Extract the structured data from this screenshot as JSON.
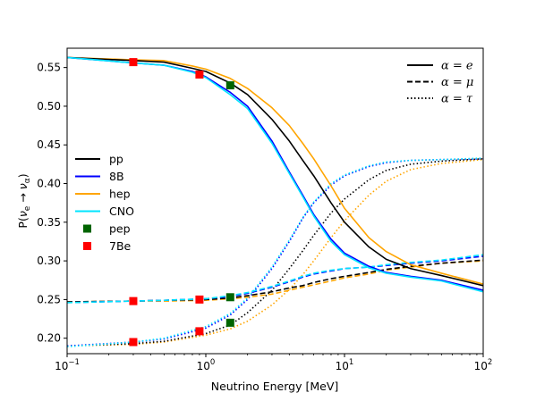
{
  "chart_data": {
    "type": "line",
    "xlabel": "Neutrino Energy [MeV]",
    "ylabel": "P(ν_e → ν_α)",
    "xscale": "log",
    "xlim": [
      0.1,
      100
    ],
    "ylim": [
      0.18,
      0.575
    ],
    "grid": false,
    "xticks": [
      {
        "value": 0.1,
        "base": "10",
        "exp": "−1"
      },
      {
        "value": 1,
        "base": "10",
        "exp": "0"
      },
      {
        "value": 10,
        "base": "10",
        "exp": "1"
      },
      {
        "value": 100,
        "base": "10",
        "exp": "2"
      }
    ],
    "yticks": [
      0.2,
      0.25,
      0.3,
      0.35,
      0.4,
      0.45,
      0.5,
      0.55
    ],
    "ytick_labels": [
      "0.20",
      "0.25",
      "0.30",
      "0.35",
      "0.40",
      "0.45",
      "0.50",
      "0.55"
    ],
    "colors": {
      "pp": "#000000",
      "8B": "#0000ff",
      "hep": "#ffa500",
      "CNO": "#00e5ff",
      "pep": "#006400",
      "7Be": "#ff0000"
    },
    "source_legend": [
      {
        "name": "pp",
        "kind": "line"
      },
      {
        "name": "8B",
        "kind": "line"
      },
      {
        "name": "hep",
        "kind": "line"
      },
      {
        "name": "CNO",
        "kind": "line"
      },
      {
        "name": "pep",
        "kind": "marker"
      },
      {
        "name": "7Be",
        "kind": "marker"
      }
    ],
    "flavor_legend": [
      {
        "style": "solid",
        "alpha": "e"
      },
      {
        "style": "dashed",
        "alpha": "μ"
      },
      {
        "style": "dotted",
        "alpha": "τ"
      }
    ],
    "alpha_prefix": "α = ",
    "curves": {
      "e": {
        "pp": {
          "x": [
            0.1,
            0.3,
            0.5,
            0.8,
            1,
            1.5,
            2,
            3,
            4,
            5,
            6,
            8,
            10,
            15,
            20,
            30,
            50,
            100
          ],
          "y": [
            0.563,
            0.559,
            0.557,
            0.549,
            0.545,
            0.53,
            0.515,
            0.483,
            0.455,
            0.43,
            0.41,
            0.375,
            0.35,
            0.318,
            0.302,
            0.29,
            0.281,
            0.268
          ]
        },
        "8B": {
          "x": [
            0.1,
            0.3,
            0.5,
            0.8,
            1,
            1.5,
            2,
            3,
            4,
            5,
            6,
            8,
            10,
            15,
            20,
            30,
            50,
            100
          ],
          "y": [
            0.563,
            0.556,
            0.553,
            0.545,
            0.538,
            0.518,
            0.5,
            0.455,
            0.415,
            0.385,
            0.36,
            0.328,
            0.31,
            0.293,
            0.285,
            0.28,
            0.275,
            0.262
          ]
        },
        "hep": {
          "x": [
            0.1,
            0.3,
            0.5,
            0.8,
            1,
            1.5,
            2,
            3,
            4,
            5,
            6,
            8,
            10,
            15,
            20,
            30,
            50,
            100
          ],
          "y": [
            0.563,
            0.56,
            0.559,
            0.552,
            0.548,
            0.536,
            0.523,
            0.498,
            0.475,
            0.452,
            0.432,
            0.397,
            0.368,
            0.33,
            0.312,
            0.295,
            0.284,
            0.27
          ]
        },
        "CNO": {
          "x": [
            0.1,
            0.3,
            0.5,
            0.8,
            1,
            1.5,
            2,
            3,
            4,
            5,
            6,
            8,
            10,
            15,
            20,
            30,
            50,
            100
          ],
          "y": [
            0.563,
            0.556,
            0.553,
            0.544,
            0.537,
            0.515,
            0.497,
            0.452,
            0.413,
            0.383,
            0.358,
            0.325,
            0.308,
            0.291,
            0.284,
            0.279,
            0.274,
            0.26
          ]
        }
      },
      "mu": {
        "pp": {
          "x": [
            0.1,
            0.3,
            0.5,
            1,
            1.5,
            2,
            3,
            4,
            5,
            6,
            8,
            10,
            15,
            20,
            30,
            50,
            100
          ],
          "y": [
            0.247,
            0.248,
            0.249,
            0.25,
            0.252,
            0.255,
            0.26,
            0.265,
            0.268,
            0.272,
            0.277,
            0.28,
            0.285,
            0.289,
            0.293,
            0.297,
            0.301
          ]
        },
        "8B": {
          "x": [
            0.1,
            0.3,
            0.5,
            1,
            1.5,
            2,
            3,
            4,
            5,
            6,
            8,
            10,
            15,
            20,
            30,
            50,
            100
          ],
          "y": [
            0.246,
            0.248,
            0.249,
            0.251,
            0.254,
            0.258,
            0.266,
            0.273,
            0.279,
            0.283,
            0.287,
            0.29,
            0.292,
            0.294,
            0.297,
            0.3,
            0.306
          ]
        },
        "hep": {
          "x": [
            0.1,
            0.3,
            0.5,
            1,
            1.5,
            2,
            3,
            4,
            5,
            6,
            8,
            10,
            15,
            20,
            30,
            50,
            100
          ],
          "y": [
            0.247,
            0.248,
            0.248,
            0.249,
            0.251,
            0.253,
            0.257,
            0.262,
            0.266,
            0.269,
            0.274,
            0.278,
            0.283,
            0.288,
            0.292,
            0.297,
            0.3
          ]
        },
        "CNO": {
          "x": [
            0.1,
            0.3,
            0.5,
            1,
            1.5,
            2,
            3,
            4,
            5,
            6,
            8,
            10,
            15,
            20,
            30,
            50,
            100
          ],
          "y": [
            0.246,
            0.248,
            0.249,
            0.251,
            0.255,
            0.259,
            0.267,
            0.274,
            0.28,
            0.284,
            0.288,
            0.29,
            0.292,
            0.295,
            0.298,
            0.301,
            0.308
          ]
        }
      },
      "tau": {
        "pp": {
          "x": [
            0.1,
            0.3,
            0.5,
            1,
            1.5,
            2,
            3,
            4,
            5,
            6,
            8,
            10,
            15,
            20,
            30,
            50,
            100
          ],
          "y": [
            0.19,
            0.193,
            0.196,
            0.206,
            0.217,
            0.233,
            0.262,
            0.29,
            0.313,
            0.333,
            0.362,
            0.38,
            0.405,
            0.417,
            0.425,
            0.429,
            0.432
          ]
        },
        "8B": {
          "x": [
            0.1,
            0.3,
            0.5,
            1,
            1.5,
            2,
            3,
            4,
            5,
            6,
            8,
            10,
            15,
            20,
            30,
            50,
            100
          ],
          "y": [
            0.19,
            0.195,
            0.199,
            0.213,
            0.23,
            0.25,
            0.29,
            0.325,
            0.355,
            0.375,
            0.398,
            0.41,
            0.422,
            0.427,
            0.43,
            0.431,
            0.432
          ]
        },
        "hep": {
          "x": [
            0.1,
            0.3,
            0.5,
            1,
            1.5,
            2,
            3,
            4,
            5,
            6,
            8,
            10,
            15,
            20,
            30,
            50,
            100
          ],
          "y": [
            0.19,
            0.192,
            0.195,
            0.204,
            0.212,
            0.222,
            0.243,
            0.263,
            0.282,
            0.3,
            0.33,
            0.352,
            0.385,
            0.403,
            0.418,
            0.426,
            0.431
          ]
        },
        "CNO": {
          "x": [
            0.1,
            0.3,
            0.5,
            1,
            1.5,
            2,
            3,
            4,
            5,
            6,
            8,
            10,
            15,
            20,
            30,
            50,
            100
          ],
          "y": [
            0.189,
            0.195,
            0.2,
            0.215,
            0.232,
            0.252,
            0.292,
            0.327,
            0.356,
            0.376,
            0.4,
            0.411,
            0.423,
            0.428,
            0.43,
            0.431,
            0.433
          ]
        }
      }
    },
    "markers": [
      {
        "source": "7Be",
        "x": 0.3,
        "y": 0.557
      },
      {
        "source": "7Be",
        "x": 0.3,
        "y": 0.248
      },
      {
        "source": "7Be",
        "x": 0.3,
        "y": 0.195
      },
      {
        "source": "7Be",
        "x": 0.9,
        "y": 0.541
      },
      {
        "source": "7Be",
        "x": 0.9,
        "y": 0.25
      },
      {
        "source": "7Be",
        "x": 0.9,
        "y": 0.209
      },
      {
        "source": "pep",
        "x": 1.5,
        "y": 0.527
      },
      {
        "source": "pep",
        "x": 1.5,
        "y": 0.253
      },
      {
        "source": "pep",
        "x": 1.5,
        "y": 0.22
      }
    ]
  }
}
